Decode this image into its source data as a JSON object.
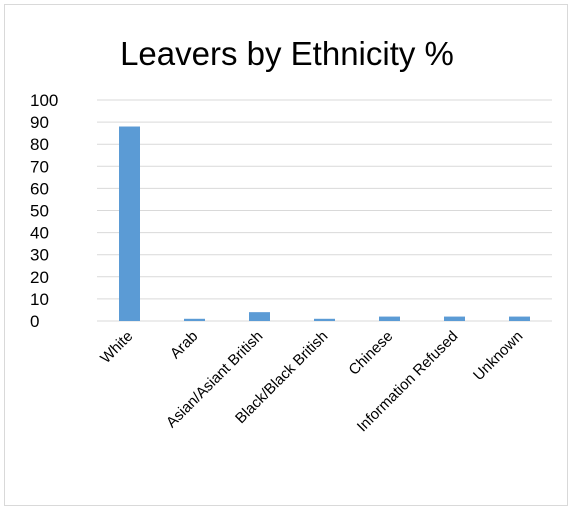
{
  "chart_data": {
    "type": "bar",
    "title": "Leavers by Ethnicity %",
    "xlabel": "",
    "ylabel": "",
    "categories": [
      "White",
      "Arab",
      "Asian/Asiant British",
      "Black/Black British",
      "Chinese",
      "Information Refused",
      "Unknown"
    ],
    "values": [
      88,
      1,
      4,
      1,
      2,
      2,
      2
    ],
    "ylim": [
      0,
      100
    ],
    "yticks": [
      0,
      10,
      20,
      30,
      40,
      50,
      60,
      70,
      80,
      90,
      100
    ],
    "grid": true,
    "legend": "none",
    "bar_color": "#5b9bd5",
    "grid_color": "#d9d9d9"
  }
}
